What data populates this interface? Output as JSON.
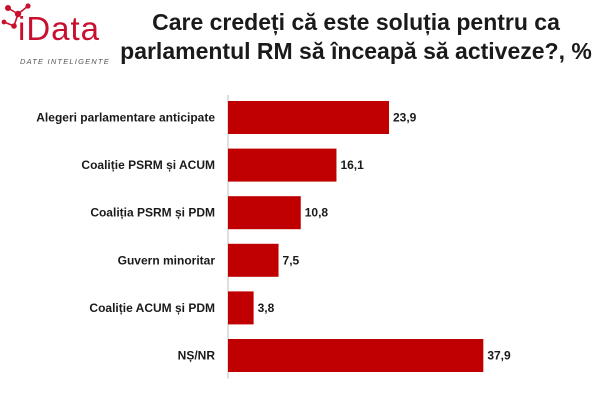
{
  "logo": {
    "word": "iData",
    "tagline": "DATE INTELIGENTE",
    "color": "#c8102e"
  },
  "title": "Care credeți că este soluția pentru ca parlamentul RM să înceapă să activeze?, %",
  "chart_data": {
    "type": "bar",
    "orientation": "horizontal",
    "title": "Care credeți că este soluția pentru ca parlamentul RM să înceapă să activeze?, %",
    "categories": [
      "Alegeri parlamentare anticipate",
      "Coaliție PSRM și ACUM",
      "Coaliția PSRM și PDM",
      "Guvern minoritar",
      "Coaliție ACUM și PDM",
      "NȘ/NR"
    ],
    "values": [
      23.9,
      16.1,
      10.8,
      7.5,
      3.8,
      37.9
    ],
    "value_labels": [
      "23,9",
      "16,1",
      "10,8",
      "7,5",
      "3,8",
      "37,9"
    ],
    "xlim": [
      0,
      40
    ],
    "bar_color": "#c00000",
    "grid": false,
    "legend": "none"
  }
}
